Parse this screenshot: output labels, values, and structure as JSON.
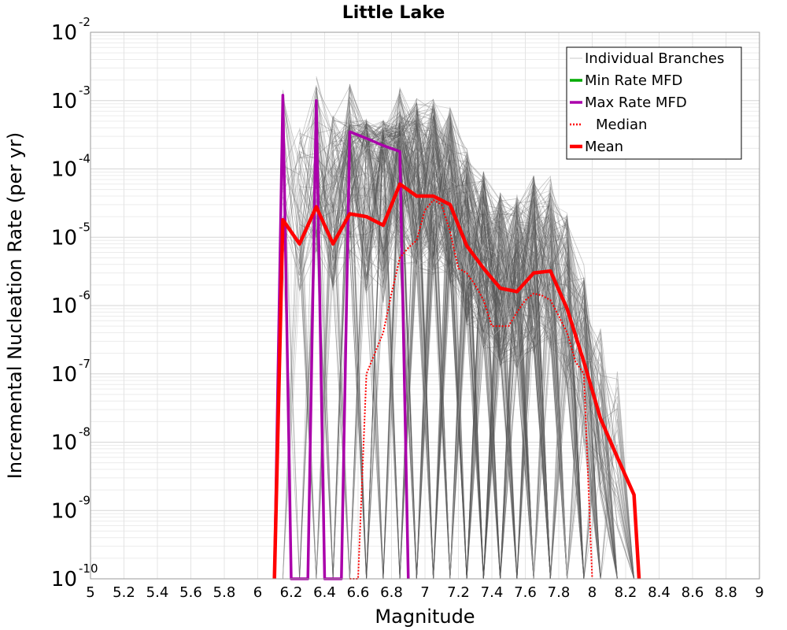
{
  "chart_data": {
    "type": "line",
    "title": "Little Lake",
    "xlabel": "Magnitude",
    "ylabel": "Incremental Nucleation Rate (per yr)",
    "xlim": [
      5,
      9
    ],
    "ylim": [
      1e-10,
      0.01
    ],
    "y_scale": "log",
    "grid": true,
    "legend_position": "top-right",
    "x_ticks": [
      "5",
      "5.2",
      "5.4",
      "5.6",
      "5.8",
      "6",
      "6.2",
      "6.4",
      "6.6",
      "6.8",
      "7",
      "7.2",
      "7.4",
      "7.6",
      "7.8",
      "8",
      "8.2",
      "8.4",
      "8.6",
      "8.8",
      "9"
    ],
    "y_ticks": [
      {
        "base": "10",
        "exp": "-10",
        "value": 1e-10
      },
      {
        "base": "10",
        "exp": "-9",
        "value": 1e-09
      },
      {
        "base": "10",
        "exp": "-8",
        "value": 1e-08
      },
      {
        "base": "10",
        "exp": "-7",
        "value": 1e-07
      },
      {
        "base": "10",
        "exp": "-6",
        "value": 1e-06
      },
      {
        "base": "10",
        "exp": "-5",
        "value": 1e-05
      },
      {
        "base": "10",
        "exp": "-4",
        "value": 0.0001
      },
      {
        "base": "10",
        "exp": "-3",
        "value": 0.001
      },
      {
        "base": "10",
        "exp": "-2",
        "value": 0.01
      }
    ],
    "legend": [
      {
        "label": "Individual Branches",
        "color": "#c8c8c8",
        "style": "thin"
      },
      {
        "label": "Min Rate MFD",
        "color": "#00aa00",
        "style": "solid"
      },
      {
        "label": "Max Rate MFD",
        "color": "#aa00aa",
        "style": "solid"
      },
      {
        "label": "Median",
        "color": "#ff0000",
        "style": "dotted"
      },
      {
        "label": "Mean",
        "color": "#ff0000",
        "style": "thick"
      }
    ],
    "series": [
      {
        "name": "Max Rate MFD",
        "color": "#aa00aa",
        "x": [
          6.1,
          6.15,
          6.2,
          6.25,
          6.3,
          6.35,
          6.4,
          6.45,
          6.5,
          6.55,
          6.65,
          6.75,
          6.85,
          6.9
        ],
        "y": [
          1e-10,
          0.0012,
          1e-10,
          1e-10,
          1e-10,
          0.001,
          1e-10,
          1e-10,
          1e-10,
          0.00035,
          0.00028,
          0.00022,
          0.00018,
          1e-10
        ]
      },
      {
        "name": "Median",
        "color": "#ff0000",
        "x": [
          6.55,
          6.6,
          6.65,
          6.7,
          6.75,
          6.8,
          6.85,
          6.9,
          6.95,
          7.0,
          7.05,
          7.1,
          7.15,
          7.2,
          7.25,
          7.3,
          7.35,
          7.4,
          7.45,
          7.5,
          7.55,
          7.6,
          7.65,
          7.7,
          7.75,
          7.8,
          7.85,
          7.9,
          7.95,
          8.0
        ],
        "y": [
          1e-10,
          1e-10,
          1e-07,
          2e-07,
          4e-07,
          1.5e-06,
          5e-06,
          7e-06,
          9e-06,
          2.5e-05,
          3.5e-05,
          3e-05,
          1.2e-05,
          3.5e-06,
          3e-06,
          2e-06,
          1.2e-06,
          5e-07,
          5e-07,
          5e-07,
          8e-07,
          1.2e-06,
          1.5e-06,
          1.4e-06,
          1.2e-06,
          7e-07,
          4e-07,
          1.5e-07,
          1e-07,
          1e-10
        ]
      },
      {
        "name": "Mean",
        "color": "#ff0000",
        "x": [
          6.1,
          6.15,
          6.25,
          6.35,
          6.45,
          6.55,
          6.65,
          6.75,
          6.85,
          6.95,
          7.05,
          7.15,
          7.25,
          7.35,
          7.45,
          7.55,
          7.65,
          7.75,
          7.85,
          7.95,
          8.05,
          8.15,
          8.25,
          8.28
        ],
        "y": [
          1e-10,
          1.8e-05,
          8e-06,
          2.8e-05,
          8e-06,
          2.2e-05,
          2e-05,
          1.5e-05,
          6e-05,
          4e-05,
          4e-05,
          3e-05,
          7.5e-06,
          3.5e-06,
          1.8e-06,
          1.6e-06,
          3e-06,
          3.2e-06,
          9e-07,
          1.5e-07,
          2.2e-08,
          6e-09,
          1.7e-09,
          1e-10
        ]
      }
    ]
  }
}
